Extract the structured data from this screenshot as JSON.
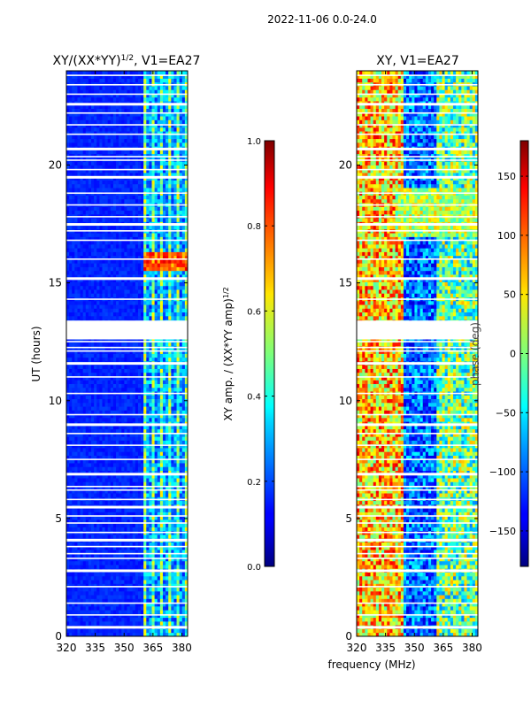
{
  "figure_title": "2022-11-06 0.0-24.0",
  "shared_xlabel": "frequency (MHz)",
  "chart_data": [
    {
      "type": "heatmap",
      "title": "XY/(XX*YY)",
      "title_superscript": "1/2",
      "title_suffix": ", V1=EA27",
      "ylabel": "UT (hours)",
      "xlim": [
        320,
        383
      ],
      "ylim": [
        0,
        24
      ],
      "xticks": [
        "320",
        "335",
        "350",
        "365",
        "380"
      ],
      "xtick_values": [
        320,
        335,
        350,
        365,
        380
      ],
      "yticks": [
        "0",
        "5",
        "10",
        "15",
        "20"
      ],
      "ytick_values": [
        0,
        5,
        10,
        15,
        20
      ],
      "colorbar": {
        "label": "XY amp. / (XX*YY amp)",
        "label_superscript": "1/2",
        "range": [
          0.0,
          1.0
        ],
        "ticks": [
          "0.0",
          "0.2",
          "0.4",
          "0.6",
          "0.8",
          "1.0"
        ],
        "tick_values": [
          0.0,
          0.2,
          0.4,
          0.6,
          0.8,
          1.0
        ]
      }
    },
    {
      "type": "heatmap",
      "title": "XY, V1=EA27",
      "xlim": [
        320,
        383
      ],
      "ylim": [
        0,
        24
      ],
      "xticks": [
        "320",
        "335",
        "350",
        "365",
        "380"
      ],
      "xtick_values": [
        320,
        335,
        350,
        365,
        380
      ],
      "yticks": [
        "0",
        "5",
        "10",
        "15",
        "20"
      ],
      "ytick_values": [
        0,
        5,
        10,
        15,
        20
      ],
      "colorbar": {
        "label": "phase (deg)",
        "range": [
          -180,
          180
        ],
        "ticks": [
          "−150",
          "−100",
          "−50",
          "0",
          "50",
          "100",
          "150"
        ],
        "tick_values": [
          -150,
          -100,
          -50,
          0,
          50,
          100,
          150
        ]
      }
    }
  ]
}
